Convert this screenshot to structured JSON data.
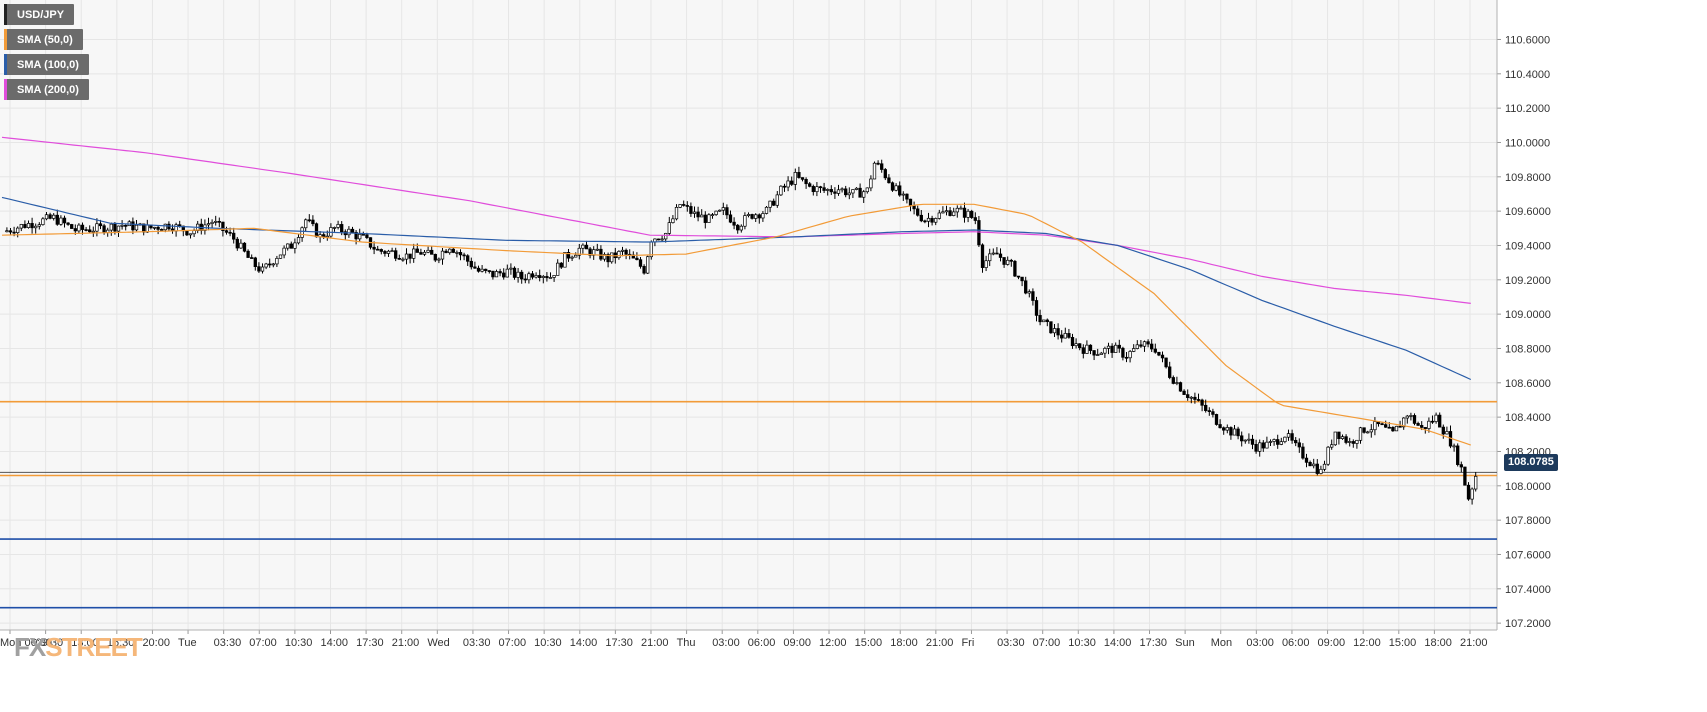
{
  "legend": [
    {
      "label": "USD/JPY",
      "color": "#222222"
    },
    {
      "label": "SMA (50,0)",
      "color": "#f29b38"
    },
    {
      "label": "SMA (100,0)",
      "color": "#2a5da8"
    },
    {
      "label": "SMA (200,0)",
      "color": "#e04ddb"
    }
  ],
  "logo": {
    "fx": "FX",
    "street": "STREET"
  },
  "last_price_label": "108.0785",
  "chart_data": {
    "type": "candlestick",
    "title": "",
    "symbol": "USD/JPY",
    "y_ticks": [
      "107.2000",
      "107.4000",
      "107.6000",
      "107.8000",
      "108.0000",
      "108.2000",
      "108.4000",
      "108.6000",
      "108.8000",
      "109.0000",
      "109.2000",
      "109.4000",
      "109.6000",
      "109.8000",
      "110.0000",
      "110.2000",
      "110.4000",
      "110.6000"
    ],
    "ylim": [
      107.16,
      110.83
    ],
    "x_ticks": [
      "Mon 06:00",
      "09:30",
      "13:00",
      "16:30",
      "20:00",
      "Tue",
      "03:30",
      "07:00",
      "10:30",
      "14:00",
      "17:30",
      "21:00",
      "Wed",
      "03:30",
      "07:00",
      "10:30",
      "14:00",
      "17:30",
      "21:00",
      "Thu",
      "03:00",
      "06:00",
      "09:00",
      "12:00",
      "15:00",
      "18:00",
      "21:00",
      "Fri",
      "03:30",
      "07:00",
      "10:30",
      "14:00",
      "17:30",
      "Sun",
      "Mon",
      "03:00",
      "06:00",
      "09:00",
      "12:00",
      "15:00",
      "18:00",
      "21:00"
    ],
    "grid": true,
    "colors": {
      "up": "#ffffff",
      "down": "#000000",
      "sma50": "#f29b38",
      "sma100": "#2a5da8",
      "sma200": "#e04ddb",
      "resistance": "#f29b38",
      "support": "#1f4fa8"
    },
    "close_path": [
      [
        0,
        109.48
      ],
      [
        6,
        109.52
      ],
      [
        14,
        109.56
      ],
      [
        20,
        109.49
      ],
      [
        27,
        109.5
      ],
      [
        33,
        109.52
      ],
      [
        40,
        109.5
      ],
      [
        46,
        109.52
      ],
      [
        52,
        109.48
      ],
      [
        58,
        109.54
      ],
      [
        64,
        109.44
      ],
      [
        69,
        109.3
      ],
      [
        72,
        109.25
      ],
      [
        76,
        109.34
      ],
      [
        80,
        109.4
      ],
      [
        84,
        109.55
      ],
      [
        88,
        109.45
      ],
      [
        92,
        109.5
      ],
      [
        96,
        109.48
      ],
      [
        100,
        109.44
      ],
      [
        104,
        109.37
      ],
      [
        108,
        109.36
      ],
      [
        112,
        109.34
      ],
      [
        116,
        109.36
      ],
      [
        120,
        109.33
      ],
      [
        124,
        109.4
      ],
      [
        128,
        109.33
      ],
      [
        132,
        109.25
      ],
      [
        136,
        109.23
      ],
      [
        140,
        109.25
      ],
      [
        144,
        109.21
      ],
      [
        148,
        109.25
      ],
      [
        152,
        109.22
      ],
      [
        156,
        109.33
      ],
      [
        160,
        109.38
      ],
      [
        164,
        109.36
      ],
      [
        168,
        109.32
      ],
      [
        172,
        109.36
      ],
      [
        176,
        109.3
      ],
      [
        178,
        109.26
      ],
      [
        180,
        109.44
      ],
      [
        184,
        109.47
      ],
      [
        188,
        109.64
      ],
      [
        192,
        109.58
      ],
      [
        196,
        109.55
      ],
      [
        200,
        109.6
      ],
      [
        204,
        109.52
      ],
      [
        208,
        109.58
      ],
      [
        212,
        109.6
      ],
      [
        216,
        109.72
      ],
      [
        220,
        109.8
      ],
      [
        224,
        109.74
      ],
      [
        228,
        109.72
      ],
      [
        232,
        109.73
      ],
      [
        236,
        109.7
      ],
      [
        240,
        109.72
      ],
      [
        242,
        109.88
      ],
      [
        244,
        109.84
      ],
      [
        248,
        109.72
      ],
      [
        252,
        109.62
      ],
      [
        256,
        109.55
      ],
      [
        260,
        109.58
      ],
      [
        264,
        109.61
      ],
      [
        268,
        109.58
      ],
      [
        270,
        109.55
      ],
      [
        272,
        109.3
      ],
      [
        276,
        109.35
      ],
      [
        280,
        109.28
      ],
      [
        284,
        109.15
      ],
      [
        288,
        108.96
      ],
      [
        292,
        108.9
      ],
      [
        296,
        108.85
      ],
      [
        300,
        108.8
      ],
      [
        304,
        108.78
      ],
      [
        308,
        108.8
      ],
      [
        312,
        108.76
      ],
      [
        316,
        108.82
      ],
      [
        320,
        108.8
      ],
      [
        324,
        108.65
      ],
      [
        328,
        108.55
      ],
      [
        332,
        108.48
      ],
      [
        336,
        108.4
      ],
      [
        340,
        108.33
      ],
      [
        344,
        108.28
      ],
      [
        348,
        108.23
      ],
      [
        352,
        108.24
      ],
      [
        356,
        108.3
      ],
      [
        360,
        108.2
      ],
      [
        364,
        108.12
      ],
      [
        366,
        108.08
      ],
      [
        370,
        108.32
      ],
      [
        374,
        108.25
      ],
      [
        378,
        108.33
      ],
      [
        382,
        108.35
      ],
      [
        386,
        108.3
      ],
      [
        390,
        108.42
      ],
      [
        394,
        108.33
      ],
      [
        398,
        108.4
      ],
      [
        402,
        108.26
      ],
      [
        405,
        108.1
      ],
      [
        407,
        107.93
      ],
      [
        409,
        108.06
      ]
    ],
    "sma50": [
      [
        0,
        109.46
      ],
      [
        40,
        109.48
      ],
      [
        70,
        109.5
      ],
      [
        100,
        109.42
      ],
      [
        140,
        109.37
      ],
      [
        170,
        109.34
      ],
      [
        190,
        109.35
      ],
      [
        215,
        109.45
      ],
      [
        235,
        109.57
      ],
      [
        255,
        109.64
      ],
      [
        270,
        109.64
      ],
      [
        285,
        109.58
      ],
      [
        300,
        109.42
      ],
      [
        320,
        109.12
      ],
      [
        340,
        108.7
      ],
      [
        355,
        108.47
      ],
      [
        375,
        108.4
      ],
      [
        395,
        108.33
      ],
      [
        409,
        108.23
      ]
    ],
    "sma100": [
      [
        0,
        109.68
      ],
      [
        30,
        109.53
      ],
      [
        60,
        109.5
      ],
      [
        100,
        109.47
      ],
      [
        140,
        109.43
      ],
      [
        180,
        109.42
      ],
      [
        220,
        109.45
      ],
      [
        250,
        109.48
      ],
      [
        270,
        109.49
      ],
      [
        290,
        109.47
      ],
      [
        310,
        109.4
      ],
      [
        330,
        109.26
      ],
      [
        350,
        109.08
      ],
      [
        370,
        108.93
      ],
      [
        390,
        108.79
      ],
      [
        409,
        108.61
      ]
    ],
    "sma200": [
      [
        0,
        110.03
      ],
      [
        40,
        109.94
      ],
      [
        80,
        109.82
      ],
      [
        130,
        109.66
      ],
      [
        180,
        109.46
      ],
      [
        220,
        109.45
      ],
      [
        250,
        109.47
      ],
      [
        270,
        109.48
      ],
      [
        290,
        109.46
      ],
      [
        310,
        109.4
      ],
      [
        330,
        109.32
      ],
      [
        350,
        109.22
      ],
      [
        370,
        109.15
      ],
      [
        390,
        109.11
      ],
      [
        409,
        109.06
      ]
    ],
    "horizontal_lines": [
      {
        "name": "resistance",
        "value": 108.49,
        "color": "#f29b38"
      },
      {
        "name": "last-price",
        "value": 108.0785,
        "color": "#555555"
      },
      {
        "name": "support-1",
        "value": 108.06,
        "color": "#f29b38"
      },
      {
        "name": "support-2",
        "value": 107.69,
        "color": "#1f4fa8"
      },
      {
        "name": "support-3",
        "value": 107.29,
        "color": "#1f4fa8"
      }
    ]
  }
}
